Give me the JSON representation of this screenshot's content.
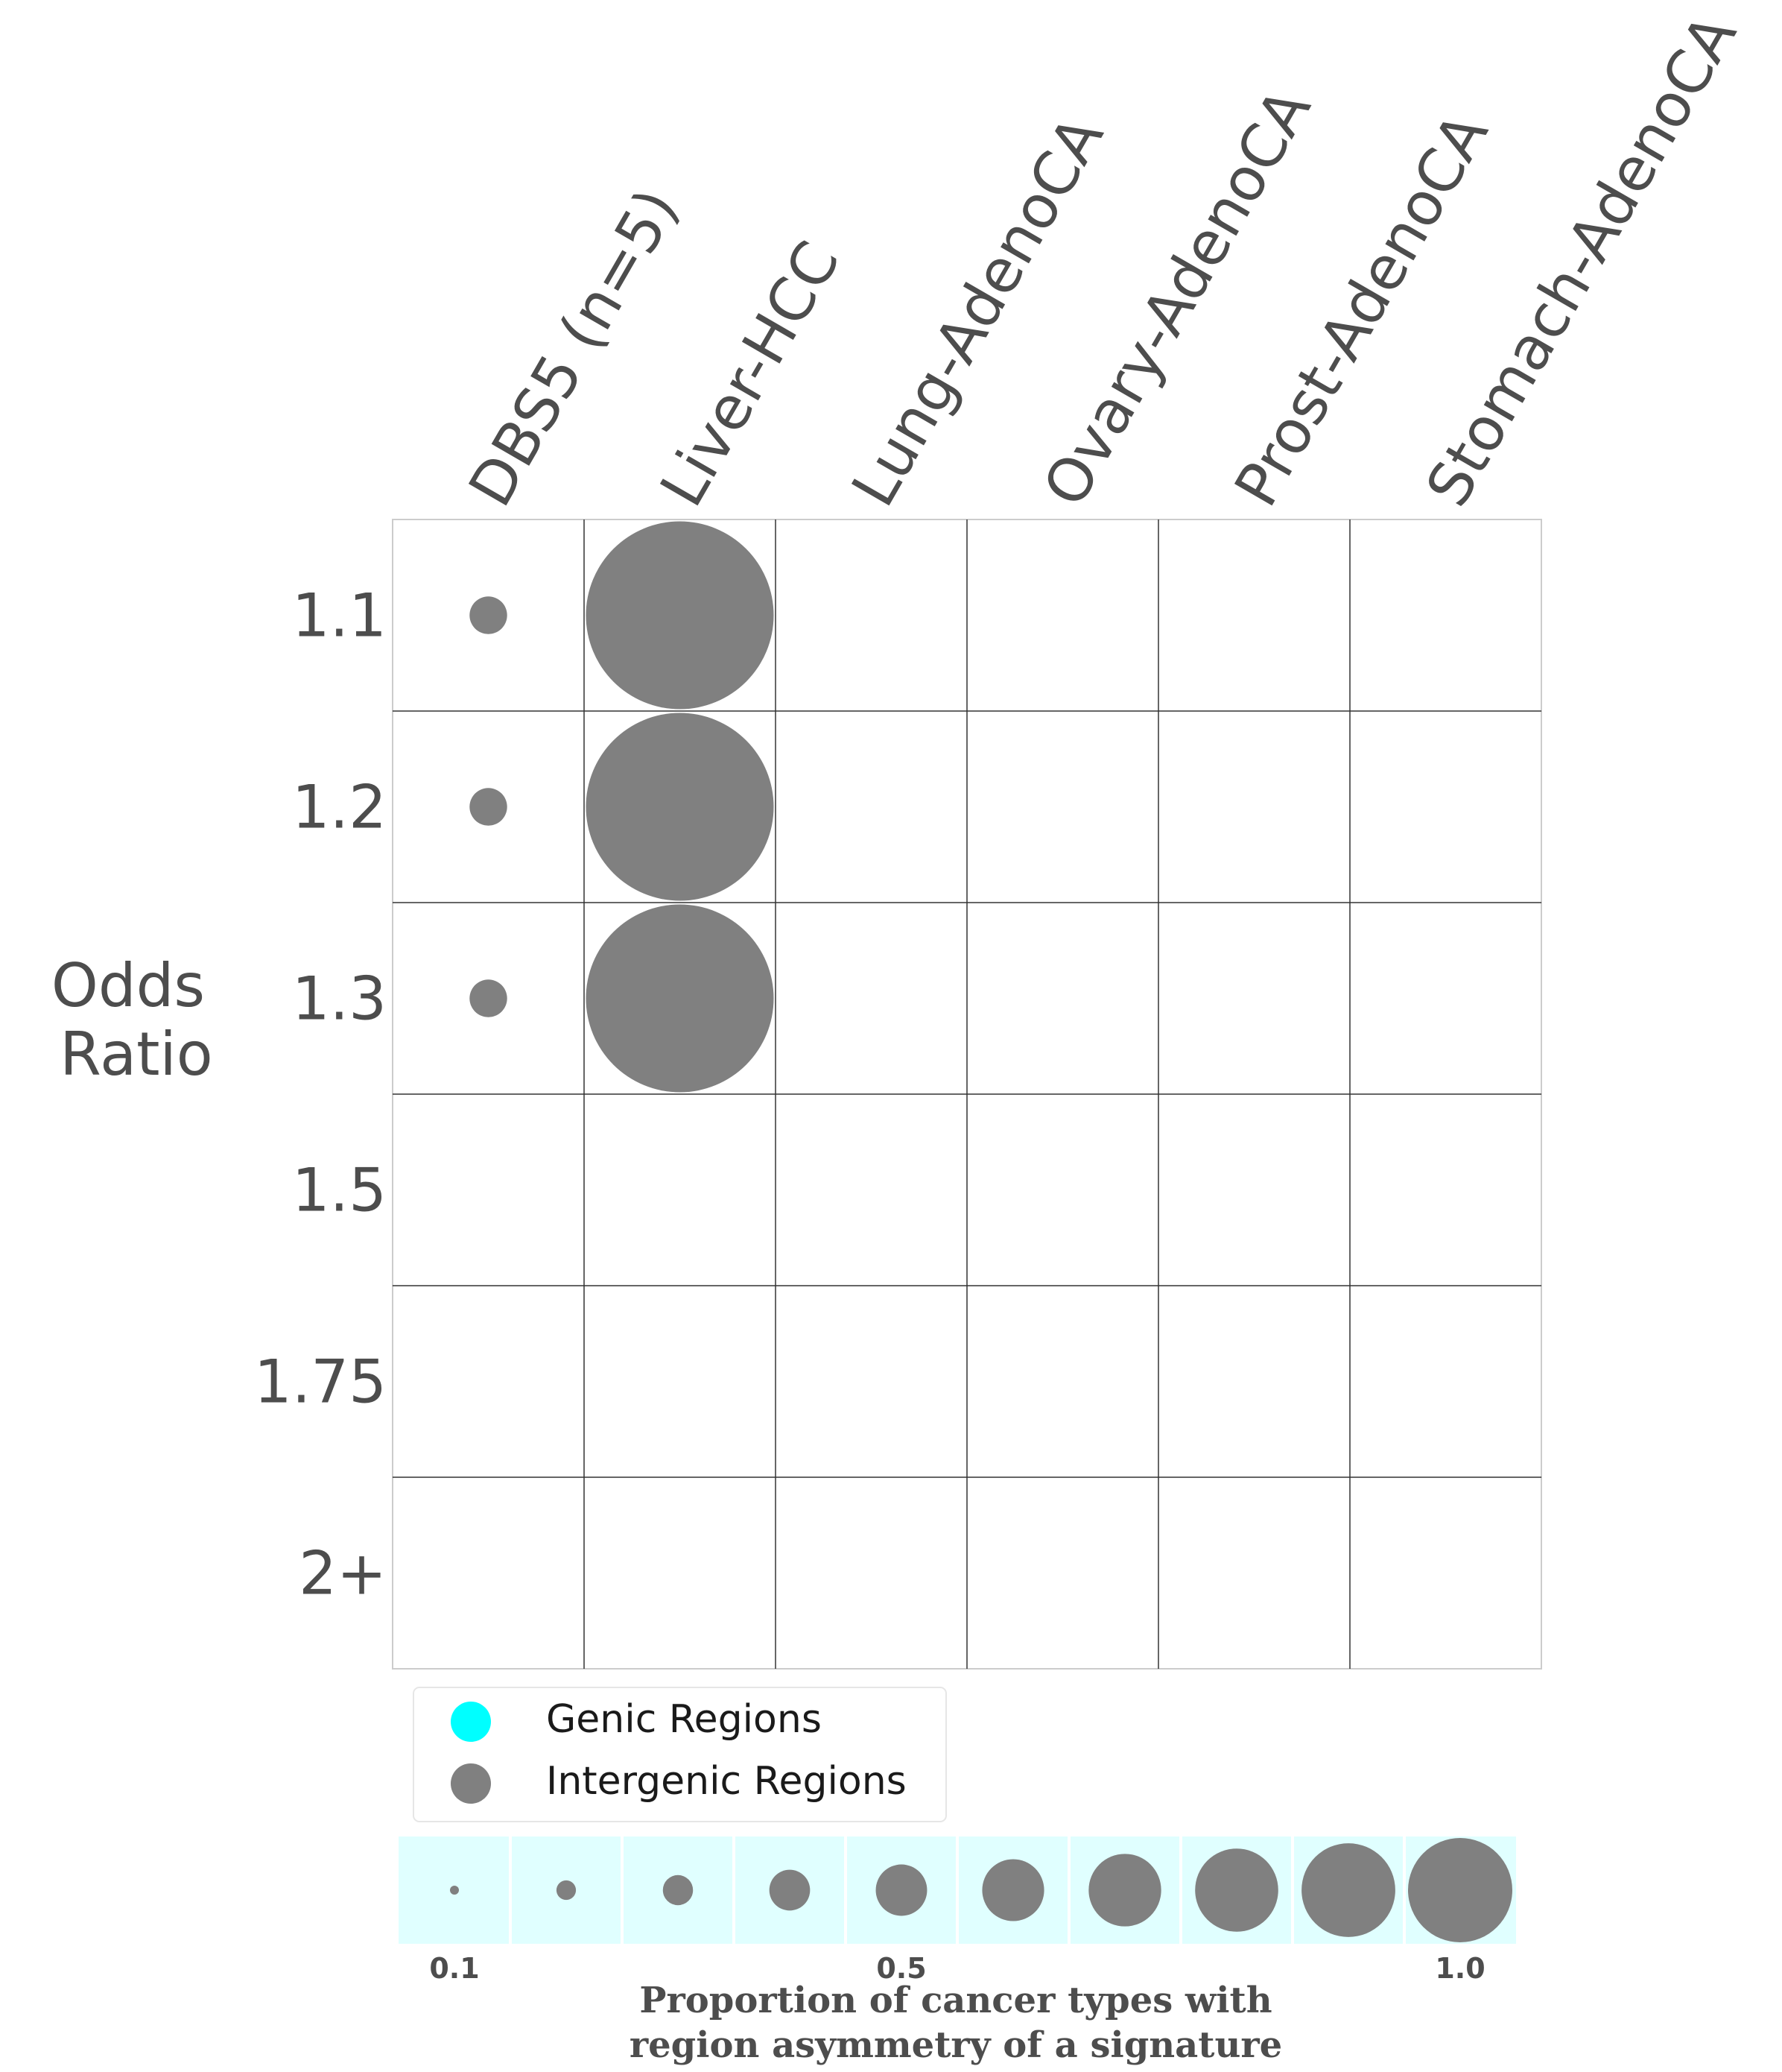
{
  "chart_data": {
    "type": "bubble-grid",
    "columns": [
      "DBS5 (n=5)",
      "Liver-HCC",
      "Lung-AdenoCA",
      "Ovary-AdenoCA",
      "Prost-AdenoCA",
      "Stomach-AdenoCA"
    ],
    "rows": [
      "1.1",
      "1.2",
      "1.3",
      "1.5",
      "1.75",
      "2+"
    ],
    "ylabel_line1": "Odds",
    "ylabel_line2": "Ratio",
    "series": [
      {
        "name": "Genic Regions",
        "color": "#00ffff",
        "points": []
      },
      {
        "name": "Intergenic Regions",
        "color": "#808080",
        "points": [
          {
            "column": "DBS5 (n=5)",
            "row": "1.1",
            "proportion": 0.2
          },
          {
            "column": "DBS5 (n=5)",
            "row": "1.2",
            "proportion": 0.2
          },
          {
            "column": "DBS5 (n=5)",
            "row": "1.3",
            "proportion": 0.2
          },
          {
            "column": "Liver-HCC",
            "row": "1.1",
            "proportion": 1.0
          },
          {
            "column": "Liver-HCC",
            "row": "1.2",
            "proportion": 1.0
          },
          {
            "column": "Liver-HCC",
            "row": "1.3",
            "proportion": 1.0
          }
        ]
      }
    ],
    "size_legend": {
      "values": [
        0.1,
        0.2,
        0.3,
        0.4,
        0.5,
        0.6,
        0.7,
        0.8,
        0.9,
        1.0
      ],
      "tick_labels": [
        "0.1",
        "0.5",
        "1.0"
      ],
      "tick_values": [
        0.1,
        0.5,
        1.0
      ],
      "background_color": "#e0ffff",
      "title_line1": "Proportion of cancer types with",
      "title_line2": "region asymmetry of a signature"
    },
    "grid": true,
    "legend_placement": "bottom-left"
  }
}
